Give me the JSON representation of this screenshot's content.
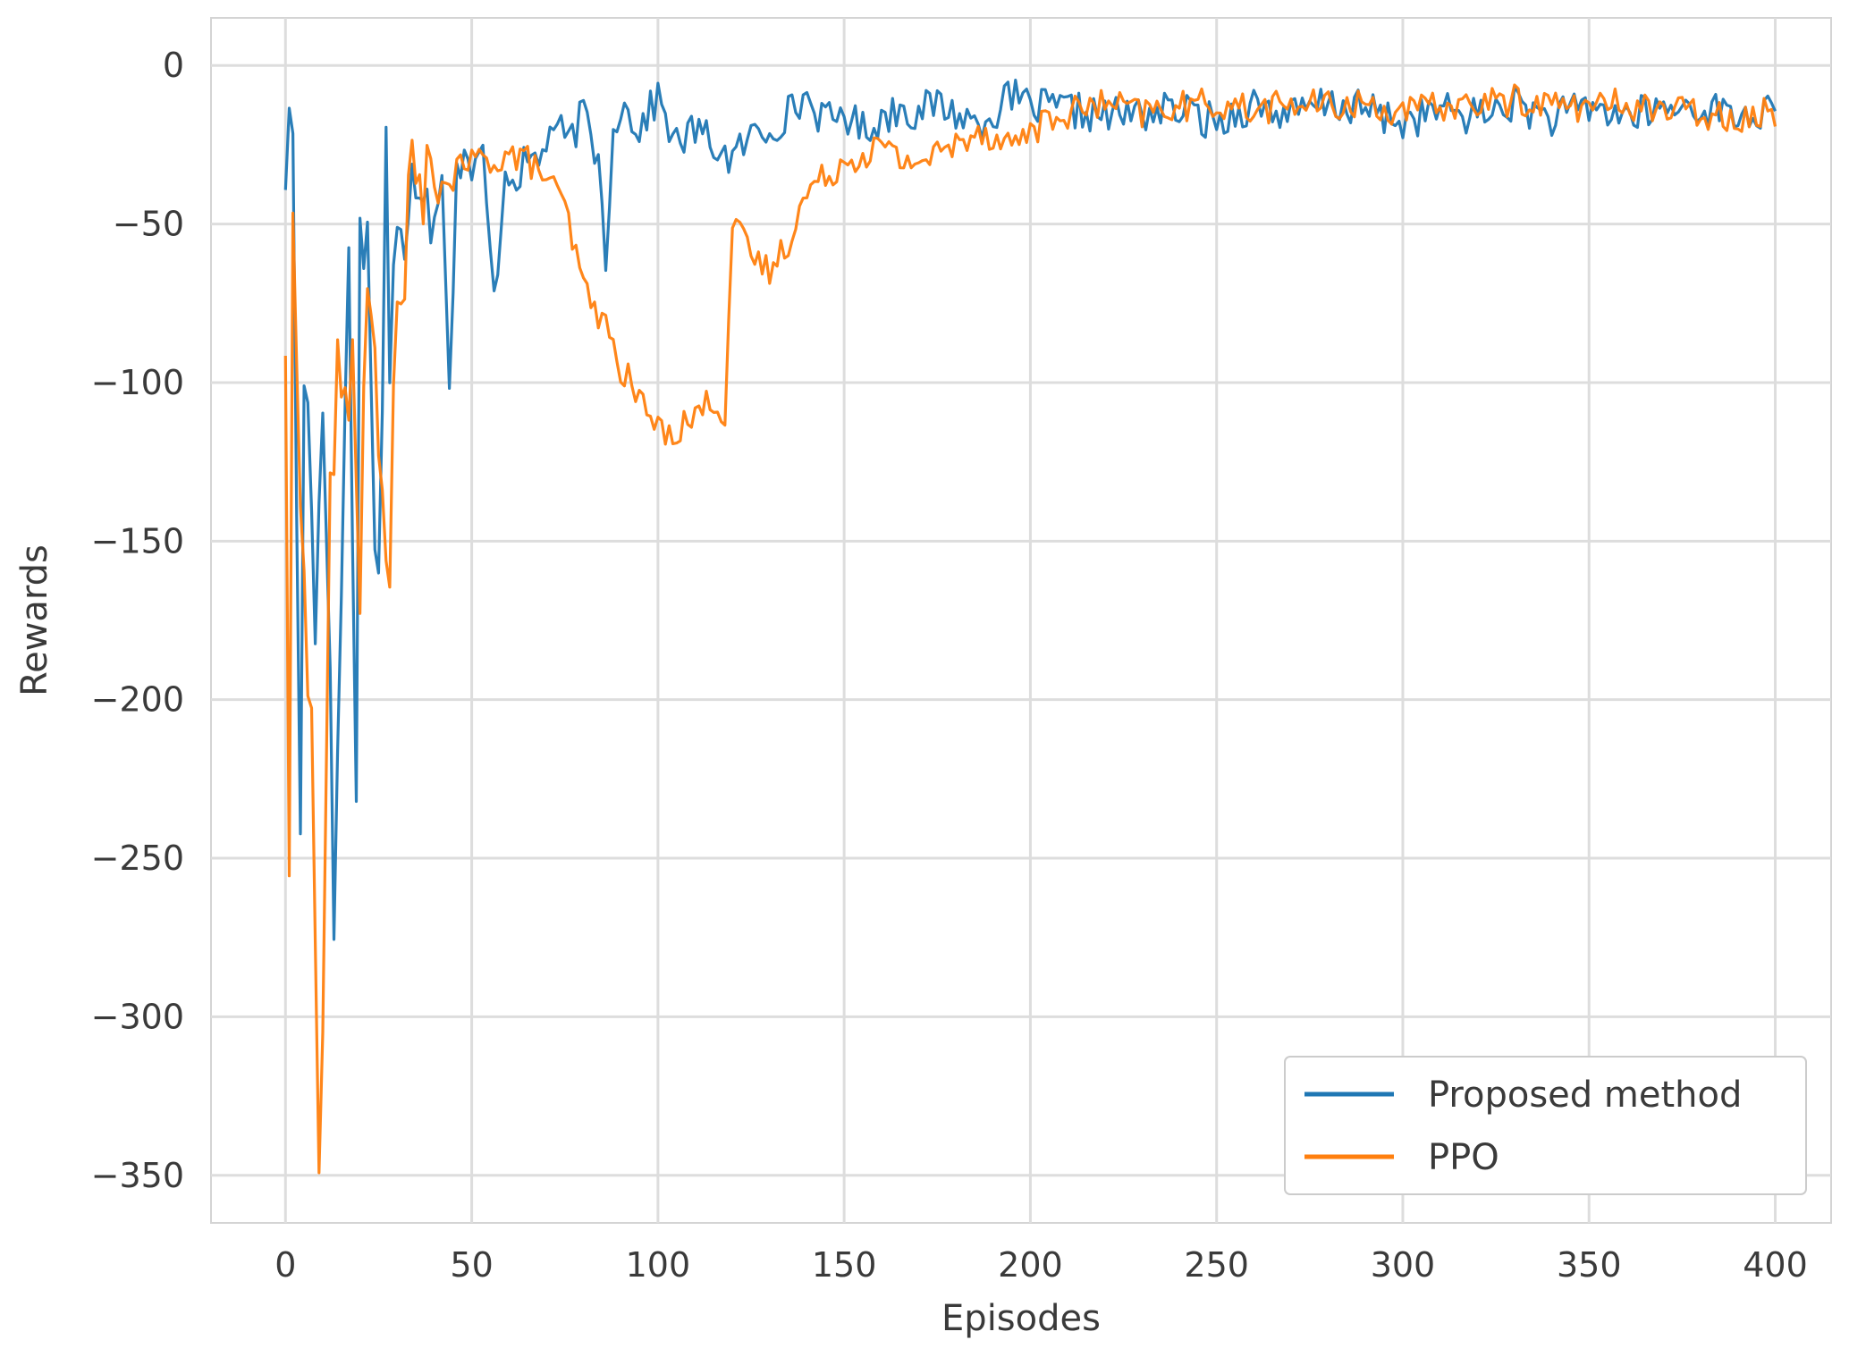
{
  "chart_data": {
    "type": "line",
    "title": "",
    "xlabel": "Episodes",
    "ylabel": "Rewards",
    "xlim": [
      -20,
      415
    ],
    "ylim": [
      -365,
      15
    ],
    "xticks": [
      0,
      50,
      100,
      150,
      200,
      250,
      300,
      350,
      400
    ],
    "yticks": [
      0,
      -50,
      -100,
      -150,
      -200,
      -250,
      -300,
      -350
    ],
    "xtick_labels": [
      "0",
      "50",
      "100",
      "150",
      "200",
      "250",
      "300",
      "350",
      "400"
    ],
    "ytick_labels": [
      "0",
      "−50",
      "−100",
      "−150",
      "−200",
      "−250",
      "−300",
      "−350"
    ],
    "grid": true,
    "legend_position": "lower right",
    "series": [
      {
        "name": "Proposed method",
        "color": "#1f77b4",
        "anchors_x": [
          0,
          2,
          4,
          5,
          7,
          8,
          10,
          12,
          13,
          14,
          16,
          17,
          19,
          20,
          22,
          23,
          25,
          27,
          28,
          30,
          32,
          34,
          36,
          38,
          40,
          42,
          44,
          46,
          48,
          50,
          53,
          56,
          59,
          62,
          65,
          68,
          72,
          76,
          80,
          84,
          86,
          88,
          90,
          95,
          100,
          105,
          110,
          115,
          120,
          125,
          130,
          135,
          140,
          145,
          150,
          155,
          160,
          165,
          170,
          175,
          180,
          185,
          190,
          195,
          200,
          210,
          220,
          230,
          240,
          250,
          260,
          270,
          280,
          290,
          300,
          310,
          320,
          330,
          340,
          350,
          360,
          370,
          380,
          390,
          400
        ],
        "anchors_y": [
          -30,
          -20,
          -250,
          -95,
          -130,
          -170,
          -110,
          -180,
          -260,
          -230,
          -100,
          -60,
          -240,
          -40,
          -60,
          -100,
          -170,
          -25,
          -90,
          -45,
          -70,
          -40,
          -30,
          -30,
          -50,
          -30,
          -100,
          -35,
          -25,
          -35,
          -28,
          -75,
          -33,
          -35,
          -30,
          -30,
          -18,
          -25,
          -15,
          -30,
          -60,
          -20,
          -12,
          -20,
          -10,
          -25,
          -20,
          -25,
          -30,
          -22,
          -20,
          -15,
          -10,
          -18,
          -15,
          -20,
          -17,
          -13,
          -15,
          -12,
          -15,
          -18,
          -15,
          -10,
          -13,
          -14,
          -16,
          -15,
          -14,
          -18,
          -12,
          -16,
          -12,
          -14,
          -18,
          -14,
          -16,
          -12,
          -17,
          -13,
          -16,
          -14,
          -13,
          -16,
          -15
        ],
        "noise": 6,
        "count": 401
      },
      {
        "name": "PPO",
        "color": "#ff7f0e",
        "anchors_x": [
          0,
          1,
          2,
          3,
          5,
          7,
          9,
          10,
          12,
          14,
          16,
          18,
          20,
          22,
          24,
          26,
          28,
          30,
          32,
          34,
          36,
          40,
          45,
          50,
          55,
          60,
          65,
          70,
          75,
          80,
          85,
          90,
          95,
          100,
          105,
          110,
          115,
          118,
          120,
          125,
          130,
          135,
          140,
          145,
          150,
          155,
          160,
          165,
          170,
          175,
          180,
          185,
          190,
          195,
          200,
          205,
          210,
          220,
          230,
          240,
          250,
          260,
          270,
          280,
          290,
          300,
          310,
          320,
          330,
          340,
          350,
          360,
          370,
          380,
          390,
          400
        ],
        "anchors_y": [
          -85,
          -270,
          -50,
          -80,
          -170,
          -210,
          -345,
          -300,
          -140,
          -100,
          -110,
          -90,
          -160,
          -70,
          -100,
          -140,
          -150,
          -80,
          -60,
          -35,
          -40,
          -40,
          -35,
          -30,
          -30,
          -28,
          -30,
          -35,
          -45,
          -70,
          -80,
          -95,
          -105,
          -115,
          -115,
          -110,
          -105,
          -110,
          -50,
          -60,
          -65,
          -55,
          -40,
          -35,
          -30,
          -28,
          -25,
          -30,
          -30,
          -28,
          -25,
          -20,
          -22,
          -25,
          -20,
          -18,
          -15,
          -12,
          -15,
          -13,
          -12,
          -14,
          -12,
          -13,
          -12,
          -15,
          -13,
          -12,
          -11,
          -12,
          -13,
          -12,
          -14,
          -15,
          -16,
          -15
        ],
        "noise": 5,
        "count": 401
      }
    ]
  }
}
